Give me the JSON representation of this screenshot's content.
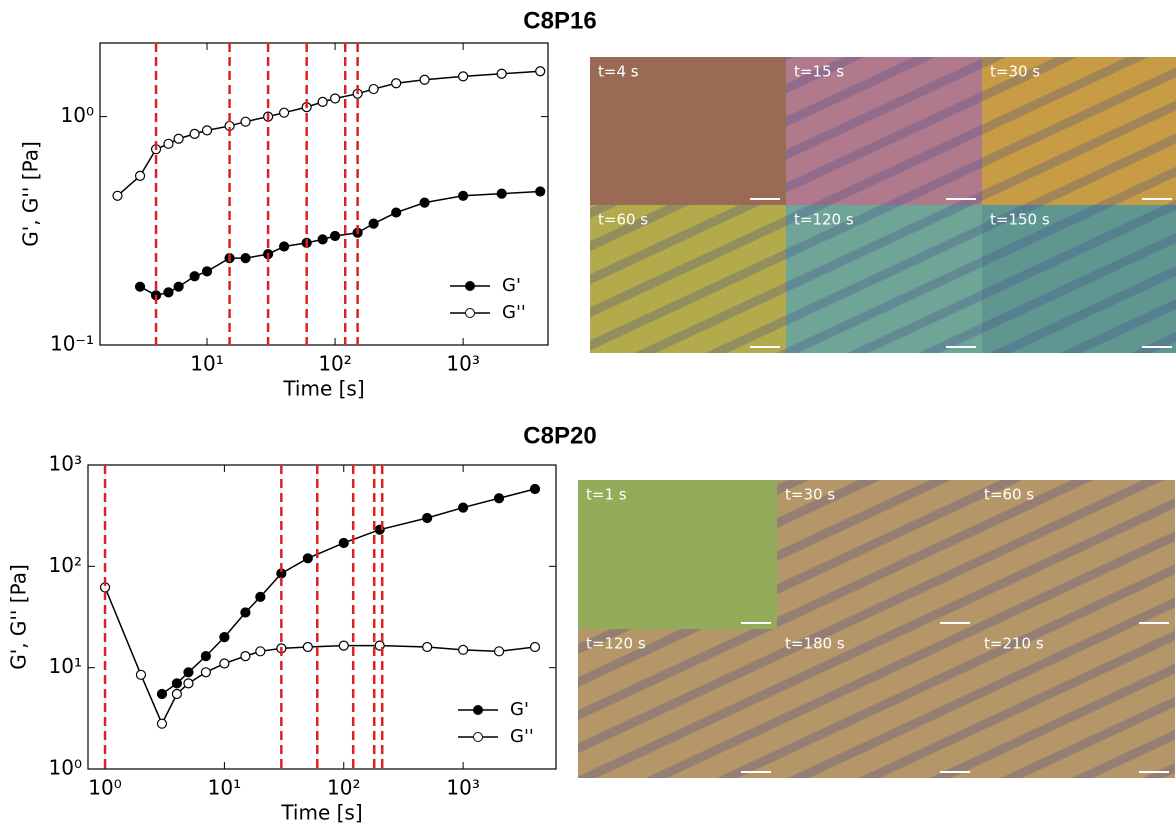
{
  "chart_data": [
    {
      "type": "line",
      "title": "C8P16",
      "xlabel": "Time [s]",
      "ylabel": "G', G'' [Pa]",
      "log_x": true,
      "log_y": true,
      "xlim": [
        1.46,
        4600
      ],
      "ylim": [
        0.1,
        2.1
      ],
      "xticks": [
        {
          "value": 10,
          "label": "10¹"
        },
        {
          "value": 100,
          "label": "10²"
        },
        {
          "value": 1000,
          "label": "10³"
        }
      ],
      "yticks": [
        {
          "value": 0.1,
          "label": "10⁻¹"
        },
        {
          "value": 1,
          "label": "10⁰"
        }
      ],
      "vlines": [
        4,
        15,
        30,
        60,
        120,
        150
      ],
      "vline_color": "#e02020",
      "legend": "lower right",
      "series": [
        {
          "name": "G'",
          "color": "#000000",
          "filled": true,
          "x": [
            3,
            4,
            5,
            6,
            8,
            10,
            15,
            20,
            30,
            40,
            60,
            80,
            100,
            150,
            200,
            300,
            500,
            1000,
            2000,
            4000
          ],
          "values": [
            0.18,
            0.165,
            0.17,
            0.18,
            0.2,
            0.21,
            0.24,
            0.24,
            0.25,
            0.27,
            0.28,
            0.29,
            0.3,
            0.31,
            0.34,
            0.38,
            0.42,
            0.45,
            0.46,
            0.47
          ]
        },
        {
          "name": "G''",
          "color": "#000000",
          "filled": false,
          "x": [
            2,
            3,
            4,
            5,
            6,
            8,
            10,
            15,
            20,
            30,
            40,
            60,
            80,
            100,
            150,
            200,
            300,
            500,
            1000,
            2000,
            4000
          ],
          "values": [
            0.45,
            0.55,
            0.72,
            0.76,
            0.8,
            0.84,
            0.87,
            0.91,
            0.95,
            1.0,
            1.04,
            1.1,
            1.16,
            1.2,
            1.26,
            1.32,
            1.4,
            1.45,
            1.5,
            1.54,
            1.58
          ]
        }
      ]
    },
    {
      "type": "line",
      "title": "C8P20",
      "xlabel": "Time [s]",
      "ylabel": "G', G'' [Pa]",
      "log_x": true,
      "log_y": true,
      "xlim": [
        0.72,
        6000
      ],
      "ylim": [
        1,
        1000
      ],
      "xticks": [
        {
          "value": 1,
          "label": "10⁰"
        },
        {
          "value": 10,
          "label": "10¹"
        },
        {
          "value": 100,
          "label": "10²"
        },
        {
          "value": 1000,
          "label": "10³"
        }
      ],
      "yticks": [
        {
          "value": 1,
          "label": "10⁰"
        },
        {
          "value": 10,
          "label": "10¹"
        },
        {
          "value": 100,
          "label": "10²"
        },
        {
          "value": 1000,
          "label": "10³"
        }
      ],
      "vlines": [
        1,
        30,
        60,
        120,
        180,
        210
      ],
      "vline_color": "#e02020",
      "legend": "lower right",
      "series": [
        {
          "name": "G'",
          "color": "#000000",
          "filled": true,
          "x": [
            3,
            4,
            5,
            7,
            10,
            15,
            20,
            30,
            50,
            100,
            200,
            500,
            1000,
            2000,
            4000
          ],
          "values": [
            5.5,
            7,
            9,
            13,
            20,
            35,
            50,
            85,
            120,
            170,
            230,
            300,
            380,
            470,
            580
          ]
        },
        {
          "name": "G''",
          "color": "#000000",
          "filled": false,
          "x": [
            1,
            2,
            3,
            4,
            5,
            7,
            10,
            15,
            20,
            30,
            50,
            100,
            200,
            500,
            1000,
            2000,
            4000
          ],
          "values": [
            62,
            8.5,
            2.8,
            5.5,
            7,
            9,
            11,
            13,
            14.5,
            15.5,
            16,
            16.5,
            16.5,
            16,
            15,
            14.5,
            16
          ]
        }
      ]
    }
  ],
  "micrographs": [
    [
      "t=4 s",
      "t=15 s",
      "t=30 s",
      "t=60 s",
      "t=120 s",
      "t=150 s"
    ],
    [
      "t=1 s",
      "t=30 s",
      "t=60 s",
      "t=120 s",
      "t=180 s",
      "t=210 s"
    ]
  ]
}
